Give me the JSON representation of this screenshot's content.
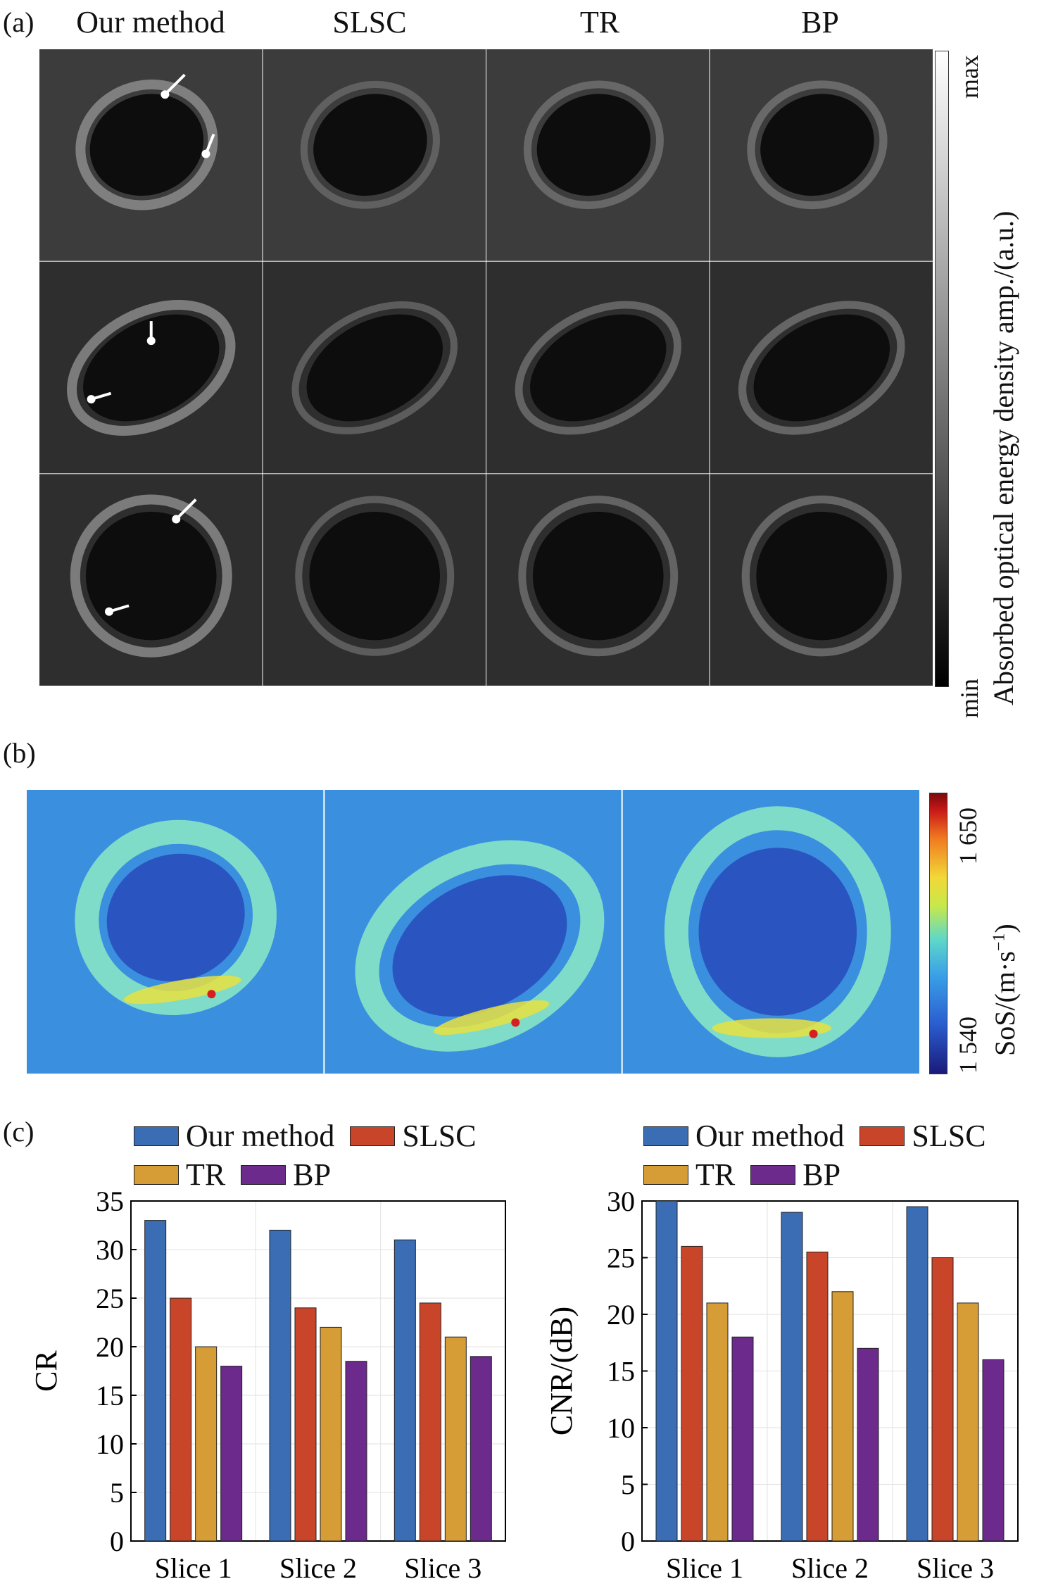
{
  "panel_a": {
    "label": "(a)",
    "columns": [
      "Our method",
      "SLSC",
      "TR",
      "BP"
    ],
    "colorbar": {
      "max": "max",
      "min": "min",
      "title": "Absorbed optical energy density amp./(a.u.)"
    }
  },
  "panel_b": {
    "label": "(b)",
    "colorbar": {
      "max": "1 650",
      "min": "1 540",
      "title_main": "SoS/(m·s",
      "title_sup": "−1",
      "title_end": ")"
    }
  },
  "panel_c": {
    "label": "(c)"
  },
  "colors": {
    "our": "#3a6db4",
    "slsc": "#c8452a",
    "tr": "#d69c35",
    "bp": "#6b2a8c"
  },
  "chart_data": [
    {
      "type": "bar",
      "categories": [
        "Slice 1",
        "Slice 2",
        "Slice 3"
      ],
      "ylabel": "CR",
      "ylim": [
        0,
        35
      ],
      "yticks": [
        0,
        5,
        10,
        15,
        20,
        25,
        30,
        35
      ],
      "grid": true,
      "legend": "top",
      "series": [
        {
          "name": "Our method",
          "values": [
            33,
            32,
            31
          ]
        },
        {
          "name": "SLSC",
          "values": [
            25,
            24,
            24.5
          ]
        },
        {
          "name": "TR",
          "values": [
            20,
            22,
            21
          ]
        },
        {
          "name": "BP",
          "values": [
            18,
            18.5,
            19
          ]
        }
      ]
    },
    {
      "type": "bar",
      "categories": [
        "Slice 1",
        "Slice 2",
        "Slice 3"
      ],
      "ylabel": "CNR/(dB)",
      "ylim": [
        0,
        30
      ],
      "yticks": [
        0,
        5,
        10,
        15,
        20,
        25,
        30
      ],
      "grid": true,
      "legend": "top",
      "series": [
        {
          "name": "Our method",
          "values": [
            30,
            29,
            29.5
          ]
        },
        {
          "name": "SLSC",
          "values": [
            26,
            25.5,
            25
          ]
        },
        {
          "name": "TR",
          "values": [
            21,
            22,
            21
          ]
        },
        {
          "name": "BP",
          "values": [
            18,
            17,
            16
          ]
        }
      ]
    }
  ]
}
